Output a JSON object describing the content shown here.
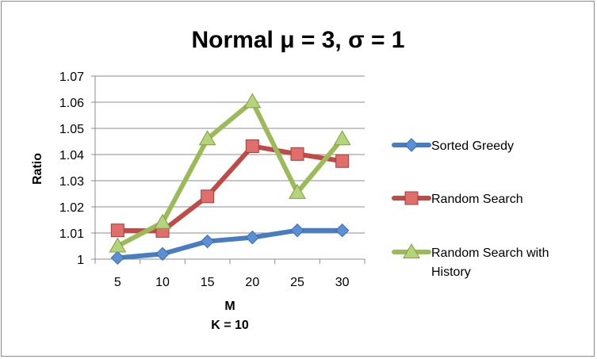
{
  "chart_data": {
    "type": "line",
    "title": "Normal μ = 3,  σ = 1",
    "xlabel": "M",
    "xlabel_sub": "K = 10",
    "ylabel": "Ratio",
    "categories": [
      "5",
      "10",
      "15",
      "20",
      "25",
      "30"
    ],
    "ylim": [
      1,
      1.07
    ],
    "yticks": [
      "1",
      "1.01",
      "1.02",
      "1.03",
      "1.04",
      "1.05",
      "1.06",
      "1.07"
    ],
    "grid": true,
    "legend_position": "right",
    "series": [
      {
        "name": "Sorted Greedy",
        "values": [
          1.0005,
          1.002,
          1.0068,
          1.0083,
          1.011,
          1.011
        ],
        "color": "#4a7cc0",
        "marker": "diamond",
        "marker_color": "#5b8fd6"
      },
      {
        "name": "Random Search",
        "values": [
          1.011,
          1.0108,
          1.024,
          1.0432,
          1.0402,
          1.0375
        ],
        "color": "#be4b48",
        "marker": "square",
        "marker_color": "#e06f6c"
      },
      {
        "name": " Random Search with History",
        "legend_lines": [
          " Random Search with",
          "History"
        ],
        "values": [
          1.005,
          1.014,
          1.046,
          1.0602,
          1.0255,
          1.046
        ],
        "color": "#9bbb59",
        "marker": "triangle",
        "marker_color": "#b5d37a"
      }
    ]
  }
}
